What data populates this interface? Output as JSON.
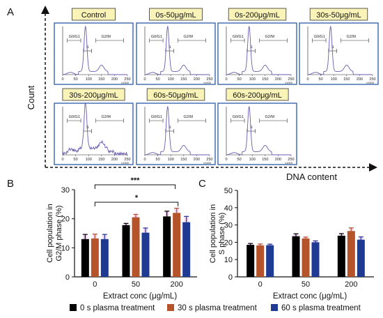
{
  "figure": {
    "panel_labels": [
      "A",
      "B",
      "C"
    ],
    "axis_arrow_y_label": "Count",
    "axis_arrow_x_label": "DNA content"
  },
  "histograms": {
    "tick_labels": [
      "0",
      "50",
      "100",
      "150",
      "200",
      "250"
    ],
    "axis_unit": "x1000",
    "gate_labels": [
      "G0/G1",
      "S",
      "G2/M"
    ],
    "panels": [
      {
        "title": "Control"
      },
      {
        "title": "0s-50μg/mL"
      },
      {
        "title": "0s-200μg/mL"
      },
      {
        "title": "30s-50μg/mL"
      },
      {
        "title": "30s-200μg/mL"
      },
      {
        "title": "60s-50μg/mL"
      },
      {
        "title": "60s-200μg/mL"
      }
    ]
  },
  "legend": {
    "items": [
      {
        "label": "0 s plasma treatment",
        "color": "#000000"
      },
      {
        "label": "30 s plasma treatment",
        "color": "#b5532a"
      },
      {
        "label": "60 s plasma treatment",
        "color": "#1f3a93"
      }
    ]
  },
  "colors": {
    "histogram_border": "#2b5aa8",
    "title_fill": "#faf3b8",
    "trace": "#6b5bb0",
    "error_glow": "#e38ae0"
  },
  "chart_data": [
    {
      "type": "bar",
      "panel": "B",
      "categories": [
        "0",
        "50",
        "200"
      ],
      "xlabel": "Extract conc (μg/mL)",
      "ylabel_lines": [
        "Cell population in",
        "G2/M phase (%)"
      ],
      "ylim": [
        0,
        30
      ],
      "yticks": [
        0,
        10,
        20,
        30
      ],
      "series": [
        {
          "name": "0 s plasma treatment",
          "values": [
            13.0,
            17.8,
            20.8
          ],
          "errors": [
            1.6,
            0.6,
            1.8
          ]
        },
        {
          "name": "30 s plasma treatment",
          "values": [
            13.2,
            20.5,
            22.0
          ],
          "errors": [
            1.5,
            1.0,
            1.6
          ]
        },
        {
          "name": "60 s plasma treatment",
          "values": [
            13.0,
            15.2,
            18.8
          ],
          "errors": [
            1.6,
            1.6,
            2.0
          ]
        }
      ],
      "annotations": [
        {
          "label": "***",
          "from": "0",
          "to": "200"
        },
        {
          "label": "*",
          "from": "0",
          "to": "200"
        }
      ]
    },
    {
      "type": "bar",
      "panel": "C",
      "categories": [
        "0",
        "50",
        "200"
      ],
      "xlabel": "Extract conc (μg/mL)",
      "ylabel_lines": [
        "Cell population in",
        "S phase (%)"
      ],
      "ylim": [
        0,
        50
      ],
      "yticks": [
        0,
        10,
        20,
        30,
        40,
        50
      ],
      "series": [
        {
          "name": "0 s plasma treatment",
          "values": [
            18.5,
            23.5,
            23.8
          ],
          "errors": [
            0.8,
            1.4,
            1.2
          ]
        },
        {
          "name": "30 s plasma treatment",
          "values": [
            18.2,
            22.2,
            26.5
          ],
          "errors": [
            0.8,
            0.8,
            1.8
          ]
        },
        {
          "name": "60 s plasma treatment",
          "values": [
            18.3,
            20.0,
            21.5
          ],
          "errors": [
            0.6,
            0.8,
            1.6
          ]
        }
      ]
    }
  ]
}
